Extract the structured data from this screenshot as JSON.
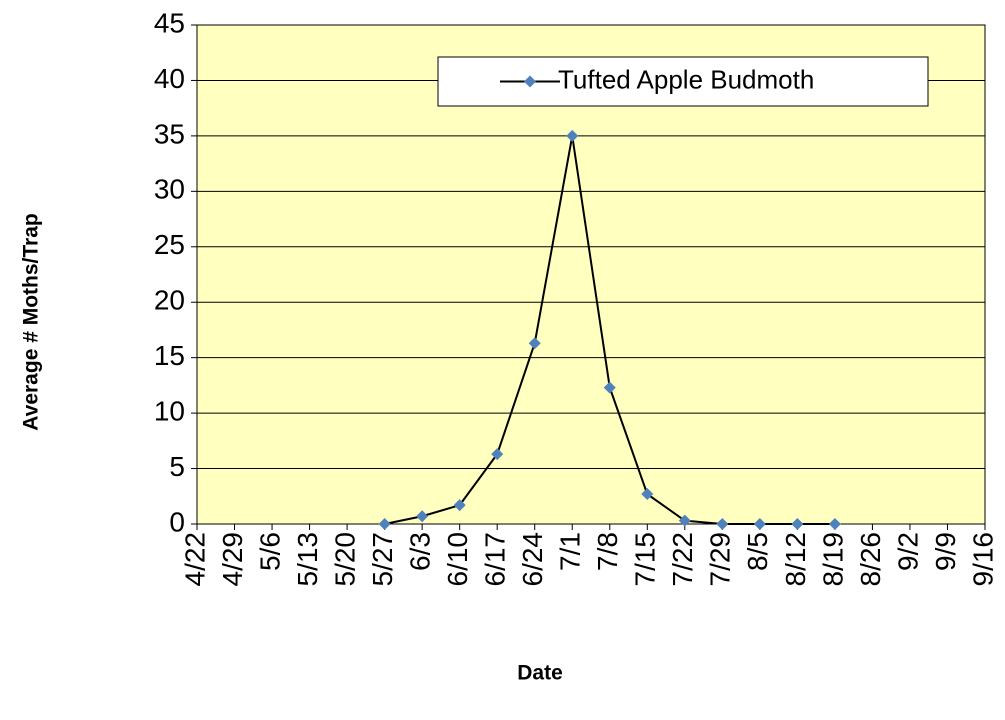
{
  "chart_data": {
    "type": "line",
    "x_label": "Date",
    "y_label": "Average # Moths/Trap",
    "categories": [
      "4/22",
      "4/29",
      "5/6",
      "5/13",
      "5/20",
      "5/27",
      "6/3",
      "6/10",
      "6/17",
      "6/24",
      "7/1",
      "7/8",
      "7/15",
      "7/22",
      "7/29",
      "8/5",
      "8/12",
      "8/19",
      "8/26",
      "9/2",
      "9/9",
      "9/16"
    ],
    "series": [
      {
        "name": "Tufted Apple Budmoth",
        "color": "#4f81bd",
        "line_color": "#000000",
        "values": [
          null,
          null,
          null,
          null,
          null,
          0,
          0.7,
          1.7,
          6.3,
          16.3,
          35,
          12.3,
          2.7,
          0.3,
          0,
          0,
          0,
          0,
          null,
          null,
          null,
          null
        ]
      }
    ],
    "ylim": [
      0,
      45
    ],
    "yticks": [
      0,
      5,
      10,
      15,
      20,
      25,
      30,
      35,
      40,
      45
    ],
    "grid": true,
    "background": "#ffffc0",
    "legend": "upper right"
  }
}
